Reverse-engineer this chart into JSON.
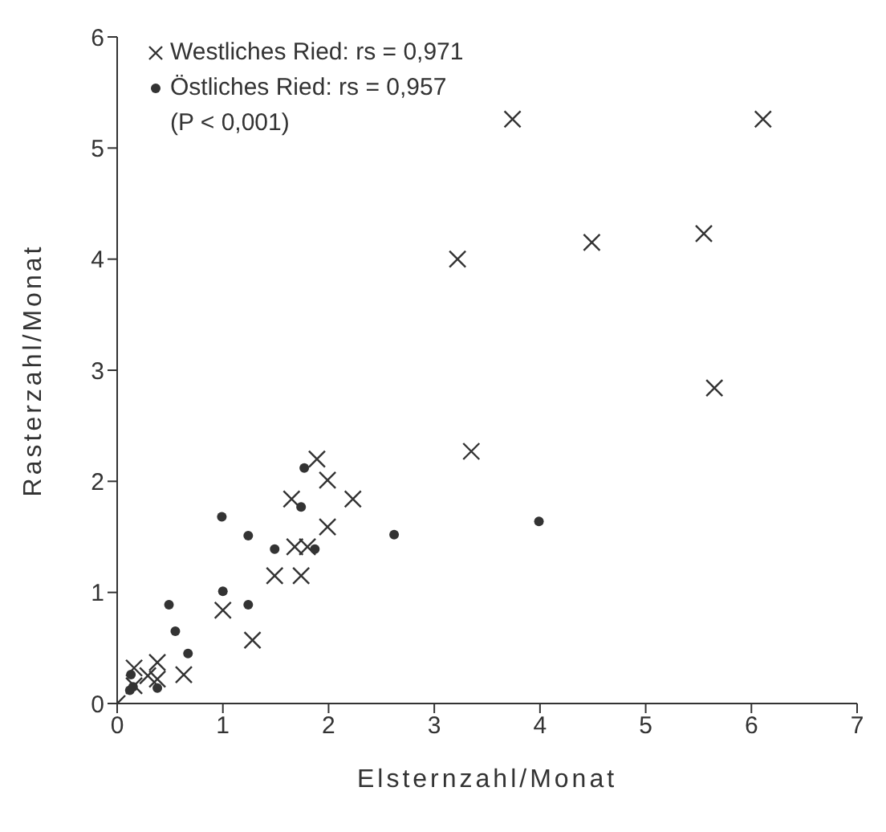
{
  "chart_data": {
    "type": "scatter",
    "xlabel": "Elsternzahl/Monat",
    "ylabel": "Rasterzahl/Monat",
    "xlim": [
      0,
      7
    ],
    "ylim": [
      0,
      6
    ],
    "xticks": [
      0,
      1,
      2,
      3,
      4,
      5,
      6,
      7
    ],
    "yticks": [
      0,
      1,
      2,
      3,
      4,
      5,
      6
    ],
    "grid": false,
    "legend": "top left",
    "annotations": [
      "(P < 0,001)"
    ],
    "series": [
      {
        "name": "Westliches Ried: rs = 0,971",
        "color": "#333333",
        "marker": "cross",
        "x": [
          0,
          0.16,
          0.16,
          0.29,
          0.38,
          0.38,
          0.63,
          1.0,
          1.28,
          1.49,
          1.74,
          1.68,
          1.8,
          1.99,
          1.65,
          2.23,
          1.99,
          1.89,
          3.35,
          3.22,
          3.74,
          4.49,
          5.55,
          5.65,
          6.11
        ],
        "values": [
          0,
          0.16,
          0.32,
          0.25,
          0.37,
          0.22,
          0.26,
          0.84,
          0.57,
          1.15,
          1.15,
          1.41,
          1.41,
          1.59,
          1.84,
          1.84,
          2.01,
          2.2,
          2.27,
          4.0,
          5.26,
          4.15,
          4.23,
          2.84,
          5.26
        ]
      },
      {
        "name": "Östliches Ried: rs = 0,957",
        "color": "#333333",
        "marker": "circle",
        "x": [
          0.12,
          0.15,
          0.13,
          0.38,
          0.49,
          0.55,
          0.67,
          1.0,
          1.24,
          1.49,
          1.87,
          0.99,
          1.24,
          1.74,
          1.77,
          2.62,
          3.99
        ],
        "values": [
          0.12,
          0.15,
          0.26,
          0.14,
          0.89,
          0.65,
          0.45,
          1.01,
          0.89,
          1.39,
          1.39,
          1.68,
          1.51,
          1.77,
          2.12,
          1.52,
          1.64
        ]
      }
    ]
  }
}
